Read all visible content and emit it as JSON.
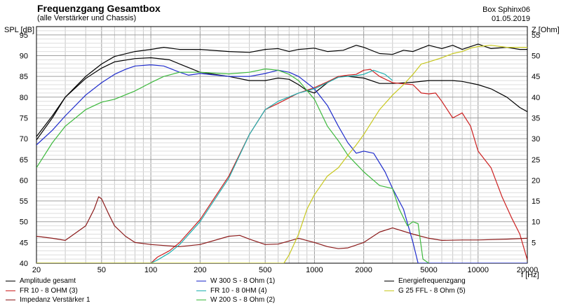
{
  "header": {
    "title": "Frequenzgang Gesamtbox",
    "subtitle": "(alle Verstärker und Chassis)",
    "box_name": "Box Sphinx06",
    "date": "01.05.2019"
  },
  "chart_data": {
    "type": "line",
    "title": "Frequenzgang Gesamtbox",
    "subtitle": "(alle Verstärker und Chassis)",
    "xlabel": "f [Hz]",
    "ylabel_left": "SPL [dB]",
    "ylabel_right": "Z [Ohm]",
    "x_scale": "log",
    "xlim": [
      20,
      20000
    ],
    "ylim_left": [
      40,
      97
    ],
    "ylim_right": [
      0,
      57
    ],
    "x_ticks": [
      20,
      50,
      100,
      200,
      500,
      1000,
      2000,
      5000,
      10000,
      20000
    ],
    "x_tick_labels": [
      "20",
      "50",
      "100",
      "200",
      "500",
      "1000",
      "2000",
      "5000",
      "10000",
      "20000"
    ],
    "y_left_ticks": [
      40,
      45,
      50,
      55,
      60,
      65,
      70,
      75,
      80,
      85,
      90,
      95
    ],
    "y_right_ticks": [
      5,
      10,
      15,
      20,
      25,
      30,
      35,
      40,
      45,
      50,
      55
    ],
    "grid": true,
    "legend_position": "bottom",
    "series": [
      {
        "name": "Amplitude gesamt",
        "color": "#000000",
        "axis": "left",
        "points": [
          [
            20,
            69.7
          ],
          [
            25,
            75
          ],
          [
            30,
            80
          ],
          [
            40,
            84.5
          ],
          [
            50,
            87
          ],
          [
            60,
            88.5
          ],
          [
            80,
            89.3
          ],
          [
            100,
            89.5
          ],
          [
            130,
            89
          ],
          [
            150,
            88
          ],
          [
            200,
            86
          ],
          [
            300,
            85
          ],
          [
            400,
            84
          ],
          [
            500,
            84
          ],
          [
            600,
            84.6
          ],
          [
            700,
            84.3
          ],
          [
            800,
            83
          ],
          [
            900,
            81.6
          ],
          [
            1000,
            81
          ],
          [
            1200,
            83.5
          ],
          [
            1400,
            85
          ],
          [
            1600,
            85
          ],
          [
            2000,
            84.6
          ],
          [
            2500,
            83.3
          ],
          [
            3000,
            83.3
          ],
          [
            4000,
            83.6
          ],
          [
            5000,
            84
          ],
          [
            6000,
            84
          ],
          [
            7000,
            84
          ],
          [
            8000,
            83.8
          ],
          [
            10000,
            83
          ],
          [
            12000,
            82
          ],
          [
            15000,
            80
          ],
          [
            18000,
            77.5
          ],
          [
            20000,
            76.5
          ]
        ]
      },
      {
        "name": "FR 10 - 8 OHM (3)",
        "color": "#cc2020",
        "axis": "left",
        "points": [
          [
            20,
            40
          ],
          [
            100,
            40
          ],
          [
            110,
            41.5
          ],
          [
            130,
            43
          ],
          [
            150,
            45
          ],
          [
            200,
            50.5
          ],
          [
            300,
            61
          ],
          [
            400,
            71
          ],
          [
            500,
            77
          ],
          [
            600,
            78.5
          ],
          [
            800,
            81
          ],
          [
            1000,
            82.3
          ],
          [
            1200,
            83.7
          ],
          [
            1400,
            85
          ],
          [
            1600,
            85.3
          ],
          [
            1800,
            85.5
          ],
          [
            2000,
            86.5
          ],
          [
            2200,
            86.7
          ],
          [
            2500,
            85
          ],
          [
            3000,
            83.5
          ],
          [
            4000,
            83
          ],
          [
            4500,
            81
          ],
          [
            5000,
            80.8
          ],
          [
            5500,
            81
          ],
          [
            6000,
            79
          ],
          [
            7000,
            75
          ],
          [
            8000,
            76.2
          ],
          [
            9000,
            73
          ],
          [
            10000,
            67
          ],
          [
            12000,
            63
          ],
          [
            14000,
            56
          ],
          [
            16000,
            51
          ],
          [
            18000,
            47
          ],
          [
            20000,
            40.8
          ]
        ]
      },
      {
        "name": "Impedanz Verstärker 1",
        "color": "#8b1a1a",
        "axis": "right",
        "points": [
          [
            20,
            6.5
          ],
          [
            25,
            6
          ],
          [
            30,
            5.5
          ],
          [
            40,
            9
          ],
          [
            45,
            13
          ],
          [
            48,
            16
          ],
          [
            50,
            15.5
          ],
          [
            55,
            12
          ],
          [
            60,
            9
          ],
          [
            70,
            6.5
          ],
          [
            80,
            5
          ],
          [
            100,
            4.5
          ],
          [
            150,
            4
          ],
          [
            200,
            4.5
          ],
          [
            300,
            6.5
          ],
          [
            350,
            6.7
          ],
          [
            400,
            5.8
          ],
          [
            500,
            4.5
          ],
          [
            600,
            4.6
          ],
          [
            800,
            6
          ],
          [
            1000,
            5
          ],
          [
            1200,
            4
          ],
          [
            1400,
            3.5
          ],
          [
            1600,
            3.7
          ],
          [
            2000,
            5
          ],
          [
            2500,
            7.5
          ],
          [
            3000,
            8.5
          ],
          [
            4000,
            7
          ],
          [
            5000,
            6
          ],
          [
            6000,
            5.5
          ],
          [
            8000,
            5.6
          ],
          [
            10000,
            5.6
          ],
          [
            15000,
            5.8
          ],
          [
            20000,
            6
          ]
        ]
      },
      {
        "name": "W 300 S - 8 Ohm (1)",
        "color": "#1f2ccc",
        "axis": "left",
        "points": [
          [
            20,
            68.5
          ],
          [
            25,
            72
          ],
          [
            30,
            75.5
          ],
          [
            40,
            80.5
          ],
          [
            50,
            83.5
          ],
          [
            60,
            85.5
          ],
          [
            70,
            86.7
          ],
          [
            80,
            87.5
          ],
          [
            100,
            87.8
          ],
          [
            120,
            87.5
          ],
          [
            150,
            86
          ],
          [
            170,
            85.3
          ],
          [
            200,
            85.7
          ],
          [
            300,
            85
          ],
          [
            400,
            85
          ],
          [
            500,
            85.7
          ],
          [
            600,
            86.5
          ],
          [
            700,
            86
          ],
          [
            800,
            85
          ],
          [
            1000,
            82
          ],
          [
            1200,
            78
          ],
          [
            1400,
            73
          ],
          [
            1600,
            69
          ],
          [
            1800,
            66.5
          ],
          [
            2000,
            67
          ],
          [
            2300,
            66.5
          ],
          [
            2700,
            62
          ],
          [
            3000,
            58
          ],
          [
            3500,
            53
          ],
          [
            4000,
            45
          ],
          [
            4300,
            40
          ],
          [
            20000,
            40
          ]
        ]
      },
      {
        "name": "FR 10 - 8 0HM (4)",
        "color": "#20b0b0",
        "axis": "left",
        "points": [
          [
            20,
            40
          ],
          [
            100,
            40
          ],
          [
            110,
            40.8
          ],
          [
            130,
            42.5
          ],
          [
            150,
            44.5
          ],
          [
            200,
            50
          ],
          [
            300,
            60.5
          ],
          [
            400,
            71
          ],
          [
            500,
            77
          ],
          [
            600,
            79
          ],
          [
            800,
            81
          ],
          [
            1000,
            82
          ],
          [
            1200,
            83.5
          ],
          [
            1400,
            84.8
          ],
          [
            1800,
            85.2
          ],
          [
            2000,
            85.5
          ],
          [
            2300,
            86.5
          ],
          [
            2700,
            85.5
          ],
          [
            3000,
            84
          ]
        ]
      },
      {
        "name": "W 200 S - 8 Ohm (2)",
        "color": "#3cb83c",
        "axis": "left",
        "points": [
          [
            20,
            63
          ],
          [
            25,
            69
          ],
          [
            30,
            73
          ],
          [
            40,
            77
          ],
          [
            50,
            78.8
          ],
          [
            60,
            79.5
          ],
          [
            80,
            81.5
          ],
          [
            100,
            83.5
          ],
          [
            120,
            85
          ],
          [
            150,
            86
          ],
          [
            200,
            86
          ],
          [
            300,
            85.6
          ],
          [
            400,
            86
          ],
          [
            500,
            86.8
          ],
          [
            600,
            86.5
          ],
          [
            700,
            85.5
          ],
          [
            800,
            84
          ],
          [
            1000,
            79.5
          ],
          [
            1200,
            73
          ],
          [
            1400,
            69.5
          ],
          [
            1600,
            66
          ],
          [
            2000,
            62
          ],
          [
            2500,
            58.7
          ],
          [
            3000,
            58
          ],
          [
            3300,
            53
          ],
          [
            3700,
            49
          ],
          [
            4000,
            50
          ],
          [
            4300,
            49.5
          ],
          [
            4600,
            41
          ],
          [
            5000,
            40
          ]
        ]
      },
      {
        "name": "Energiefrequenzgang",
        "color": "#000000",
        "axis": "left",
        "points": [
          [
            20,
            70.5
          ],
          [
            25,
            75.5
          ],
          [
            30,
            80
          ],
          [
            40,
            85
          ],
          [
            50,
            88
          ],
          [
            60,
            89.8
          ],
          [
            80,
            91
          ],
          [
            100,
            91.5
          ],
          [
            120,
            92
          ],
          [
            150,
            91.5
          ],
          [
            200,
            91.5
          ],
          [
            300,
            91
          ],
          [
            400,
            90.8
          ],
          [
            500,
            91.5
          ],
          [
            600,
            91.7
          ],
          [
            700,
            91
          ],
          [
            800,
            91.5
          ],
          [
            1000,
            91.8
          ],
          [
            1200,
            91
          ],
          [
            1500,
            91.3
          ],
          [
            1800,
            92.5
          ],
          [
            2000,
            92
          ],
          [
            2500,
            90.5
          ],
          [
            3000,
            90.3
          ],
          [
            3500,
            91.3
          ],
          [
            4000,
            91
          ],
          [
            5000,
            92.5
          ],
          [
            6000,
            91.7
          ],
          [
            7000,
            92.5
          ],
          [
            8000,
            91.5
          ],
          [
            10000,
            92.8
          ],
          [
            12000,
            91.7
          ],
          [
            15000,
            92
          ],
          [
            18000,
            91.5
          ],
          [
            20000,
            91.5
          ]
        ]
      },
      {
        "name": "G 25 FFL - 8 Ohm (5)",
        "color": "#c8c820",
        "axis": "left",
        "points": [
          [
            20,
            40
          ],
          [
            650,
            40
          ],
          [
            700,
            42
          ],
          [
            800,
            47
          ],
          [
            900,
            53
          ],
          [
            1000,
            56.5
          ],
          [
            1200,
            61
          ],
          [
            1400,
            63
          ],
          [
            1600,
            66
          ],
          [
            1800,
            68.5
          ],
          [
            2000,
            71
          ],
          [
            2500,
            77
          ],
          [
            3000,
            80.5
          ],
          [
            3500,
            83
          ],
          [
            4000,
            85.5
          ],
          [
            4500,
            88
          ],
          [
            5000,
            88.5
          ],
          [
            6000,
            89.5
          ],
          [
            7000,
            90.5
          ],
          [
            8000,
            91
          ],
          [
            9000,
            91.8
          ],
          [
            10000,
            92.2
          ],
          [
            12000,
            92.5
          ],
          [
            15000,
            92
          ],
          [
            18000,
            92
          ],
          [
            20000,
            92
          ]
        ]
      }
    ]
  }
}
